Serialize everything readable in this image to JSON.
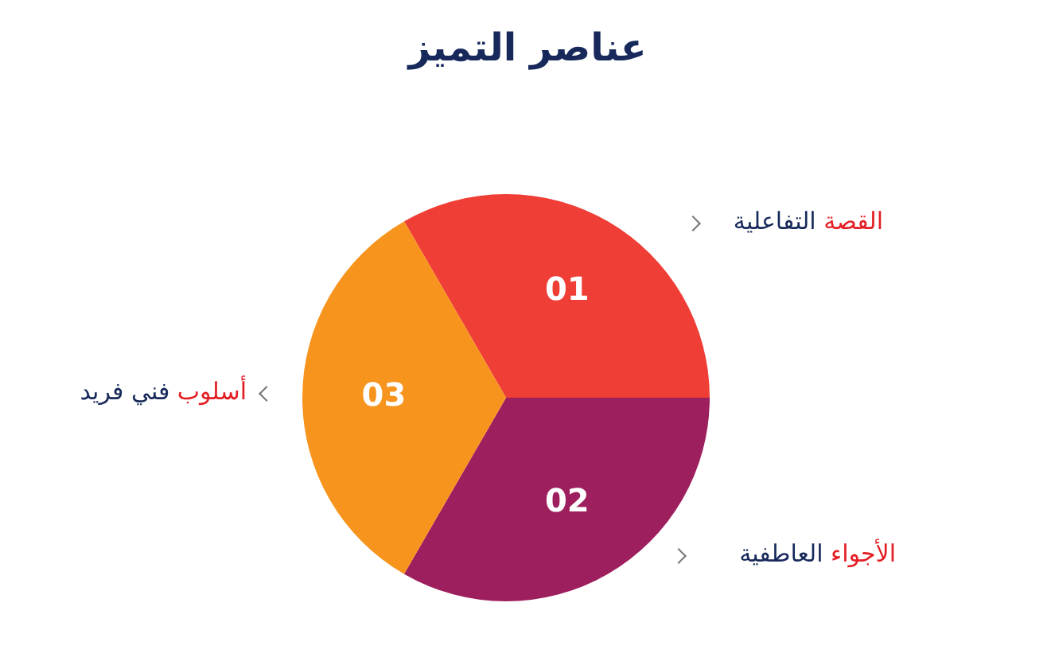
{
  "chart_data": {
    "type": "pie",
    "title": "عناصر التميز",
    "categories": [
      "القصة التفاعلية",
      "الأجواء العاطفية",
      "أسلوب فني فريد"
    ],
    "values": [
      33.34,
      33.33,
      33.33
    ],
    "colors": [
      "#ef3e36",
      "#9e1f5e",
      "#f7941d"
    ],
    "annotations": [
      "01",
      "02",
      "03"
    ],
    "legend": false
  }
}
